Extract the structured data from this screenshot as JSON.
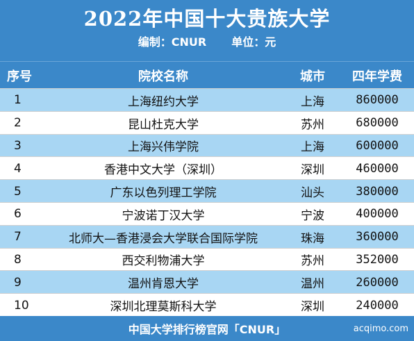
{
  "header": {
    "title": "2022年中国十大贵族大学",
    "editor": "编制：CNUR",
    "unit": "单位：元"
  },
  "table": {
    "columns": [
      "序号",
      "院校名称",
      "城市",
      "四年学费"
    ],
    "rows": [
      {
        "rank": "1",
        "name": "上海纽约大学",
        "city": "上海",
        "fee": "860000"
      },
      {
        "rank": "2",
        "name": "昆山杜克大学",
        "city": "苏州",
        "fee": "680000"
      },
      {
        "rank": "3",
        "name": "上海兴伟学院",
        "city": "上海",
        "fee": "600000"
      },
      {
        "rank": "4",
        "name": "香港中文大学（深圳）",
        "city": "深圳",
        "fee": "460000"
      },
      {
        "rank": "5",
        "name": "广东以色列理工学院",
        "city": "汕头",
        "fee": "380000"
      },
      {
        "rank": "6",
        "name": "宁波诺丁汉大学",
        "city": "宁波",
        "fee": "400000"
      },
      {
        "rank": "7",
        "name": "北师大—香港浸会大学联合国际学院",
        "city": "珠海",
        "fee": "360000"
      },
      {
        "rank": "8",
        "name": "西交利物浦大学",
        "city": "苏州",
        "fee": "352000"
      },
      {
        "rank": "9",
        "name": "温州肯恩大学",
        "city": "温州",
        "fee": "260000"
      },
      {
        "rank": "10",
        "name": "深圳北理莫斯科大学",
        "city": "深圳",
        "fee": "240000"
      }
    ]
  },
  "footer": {
    "text": "中国大学排行榜官网「CNUR」",
    "watermark": "acqimo.com"
  },
  "colors": {
    "header_bg": "#3b88c9",
    "odd_row_bg": "#a8d6f3",
    "even_row_bg": "#ffffff"
  }
}
